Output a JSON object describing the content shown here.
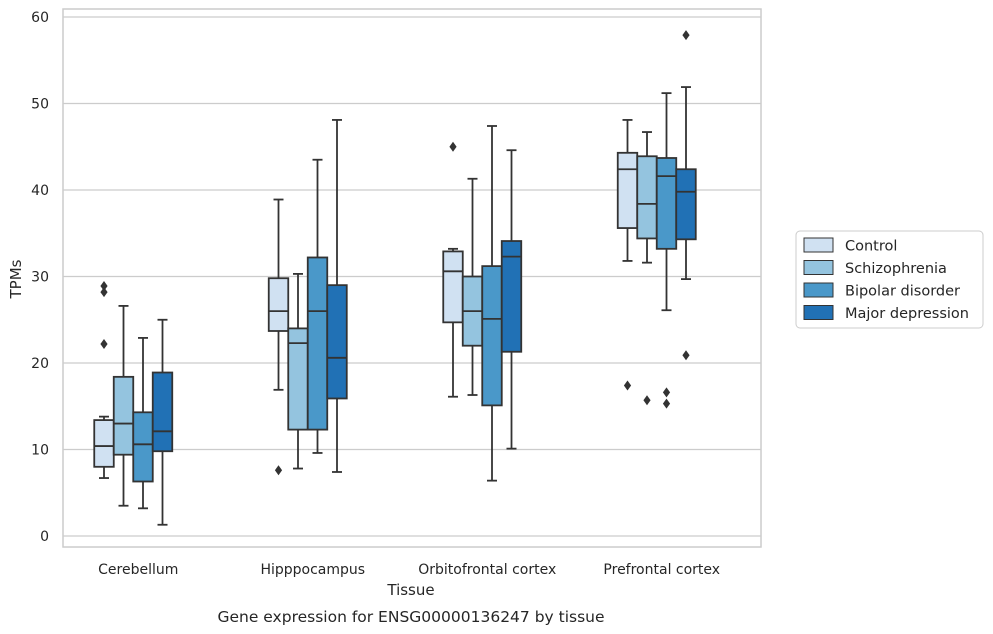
{
  "chart_data": {
    "type": "box",
    "title": "",
    "caption": "Gene expression for ENSG00000136247 by tissue",
    "xlabel": "Tissue",
    "ylabel": "TPMs",
    "ylim": [
      -1.2,
      61
    ],
    "yticks": [
      0,
      10,
      20,
      30,
      40,
      50,
      60
    ],
    "grid": "horizontal",
    "legend_position": "right",
    "categories": [
      "Cerebellum",
      "Hipppocampus",
      "Orbitofrontal cortex",
      "Prefrontal cortex"
    ],
    "series": [
      {
        "name": "Control",
        "color": "#d0e1f2",
        "boxes": [
          {
            "whisker_low": 6.7,
            "q1": 8.0,
            "median": 10.4,
            "q3": 13.4,
            "whisker_high": 13.8,
            "outliers": [
              22.2,
              28.2,
              28.9
            ]
          },
          {
            "whisker_low": 16.9,
            "q1": 23.7,
            "median": 26.0,
            "q3": 29.8,
            "whisker_high": 38.9,
            "outliers": [
              7.6
            ]
          },
          {
            "whisker_low": 16.1,
            "q1": 24.7,
            "median": 30.6,
            "q3": 32.9,
            "whisker_high": 33.2,
            "outliers": [
              45.0
            ]
          },
          {
            "whisker_low": 31.8,
            "q1": 35.6,
            "median": 42.4,
            "q3": 44.3,
            "whisker_high": 48.1,
            "outliers": [
              17.4
            ]
          }
        ]
      },
      {
        "name": "Schizophrenia",
        "color": "#94c4df",
        "boxes": [
          {
            "whisker_low": 3.5,
            "q1": 9.4,
            "median": 13.0,
            "q3": 18.4,
            "whisker_high": 26.6,
            "outliers": []
          },
          {
            "whisker_low": 7.8,
            "q1": 12.3,
            "median": 22.3,
            "q3": 24.0,
            "whisker_high": 30.3,
            "outliers": []
          },
          {
            "whisker_low": 16.3,
            "q1": 22.0,
            "median": 26.0,
            "q3": 30.0,
            "whisker_high": 41.3,
            "outliers": []
          },
          {
            "whisker_low": 31.6,
            "q1": 34.4,
            "median": 38.4,
            "q3": 43.9,
            "whisker_high": 46.7,
            "outliers": [
              15.7
            ]
          }
        ]
      },
      {
        "name": "Bipolar disorder",
        "color": "#4a98c9",
        "boxes": [
          {
            "whisker_low": 3.2,
            "q1": 6.3,
            "median": 10.6,
            "q3": 14.3,
            "whisker_high": 22.9,
            "outliers": []
          },
          {
            "whisker_low": 9.6,
            "q1": 12.3,
            "median": 26.0,
            "q3": 32.2,
            "whisker_high": 43.5,
            "outliers": []
          },
          {
            "whisker_low": 6.4,
            "q1": 15.1,
            "median": 25.1,
            "q3": 31.2,
            "whisker_high": 47.4,
            "outliers": []
          },
          {
            "whisker_low": 26.1,
            "q1": 33.2,
            "median": 41.6,
            "q3": 43.7,
            "whisker_high": 51.2,
            "outliers": [
              15.3,
              16.6
            ]
          }
        ]
      },
      {
        "name": "Major depression",
        "color": "#2171b5",
        "boxes": [
          {
            "whisker_low": 1.3,
            "q1": 9.8,
            "median": 12.1,
            "q3": 18.9,
            "whisker_high": 25.0,
            "outliers": []
          },
          {
            "whisker_low": 7.4,
            "q1": 15.9,
            "median": 20.6,
            "q3": 29.0,
            "whisker_high": 48.1,
            "outliers": []
          },
          {
            "whisker_low": 10.1,
            "q1": 21.3,
            "median": 32.3,
            "q3": 34.1,
            "whisker_high": 44.6,
            "outliers": []
          },
          {
            "whisker_low": 29.7,
            "q1": 34.3,
            "median": 39.8,
            "q3": 42.4,
            "whisker_high": 51.9,
            "outliers": [
              20.9,
              57.9
            ]
          }
        ]
      }
    ]
  },
  "colors": {
    "grid": "#cccccc",
    "axes": "#cccccc",
    "box_edge": "#333333",
    "text": "#262626"
  }
}
